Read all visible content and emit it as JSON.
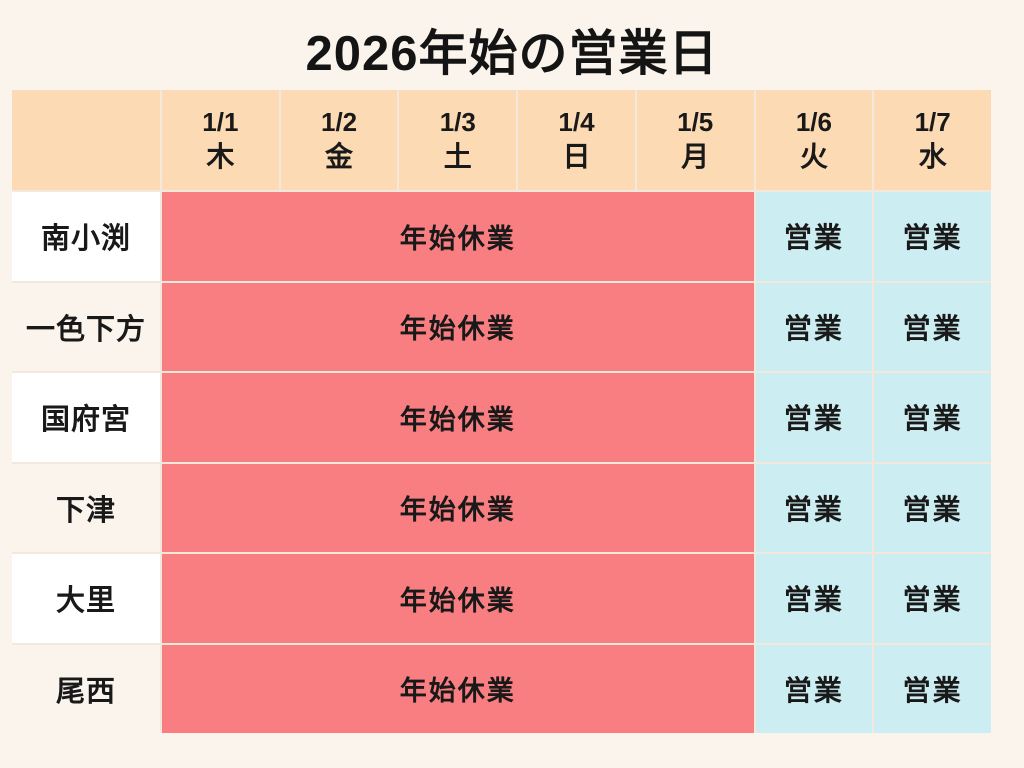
{
  "title": "2026年始の営業日",
  "table": {
    "corner_label": "",
    "columns": [
      {
        "date": "1/1",
        "day": "木"
      },
      {
        "date": "1/2",
        "day": "金"
      },
      {
        "date": "1/3",
        "day": "土"
      },
      {
        "date": "1/4",
        "day": "日"
      },
      {
        "date": "1/5",
        "day": "月"
      },
      {
        "date": "1/6",
        "day": "火"
      },
      {
        "date": "1/7",
        "day": "水"
      }
    ],
    "rows": [
      {
        "name": "南小渕",
        "closed_text": "年始休業",
        "open_1_6": "営業",
        "open_1_7": "営業"
      },
      {
        "name": "一色下方",
        "closed_text": "年始休業",
        "open_1_6": "営業",
        "open_1_7": "営業"
      },
      {
        "name": "国府宮",
        "closed_text": "年始休業",
        "open_1_6": "営業",
        "open_1_7": "営業"
      },
      {
        "name": "下津",
        "closed_text": "年始休業",
        "open_1_6": "営業",
        "open_1_7": "営業"
      },
      {
        "name": "大里",
        "closed_text": "年始休業",
        "open_1_6": "営業",
        "open_1_7": "営業"
      },
      {
        "name": "尾西",
        "closed_text": "年始休業",
        "open_1_6": "営業",
        "open_1_7": "営業"
      }
    ]
  },
  "colors": {
    "page_bg": "#faf4ec",
    "header_bg": "#fbdab4",
    "closed_bg": "#f87e81",
    "open_bg": "#cceef2",
    "label_bg": "#ffffff",
    "label_alt_bg": "#faf4ec",
    "grid_line": "#f2e8dc",
    "text": "#191919"
  },
  "chart_data": {
    "type": "table",
    "title": "2026年始の営業日",
    "column_headers": [
      "",
      "1/1 木",
      "1/2 金",
      "1/3 土",
      "1/4 日",
      "1/5 月",
      "1/6 火",
      "1/7 水"
    ],
    "rows": [
      [
        "南小渕",
        "年始休業",
        "年始休業",
        "年始休業",
        "年始休業",
        "年始休業",
        "営業",
        "営業"
      ],
      [
        "一色下方",
        "年始休業",
        "年始休業",
        "年始休業",
        "年始休業",
        "年始休業",
        "営業",
        "営業"
      ],
      [
        "国府宮",
        "年始休業",
        "年始休業",
        "年始休業",
        "年始休業",
        "年始休業",
        "営業",
        "営業"
      ],
      [
        "下津",
        "年始休業",
        "年始休業",
        "年始休業",
        "年始休業",
        "年始休業",
        "営業",
        "営業"
      ],
      [
        "大里",
        "年始休業",
        "年始休業",
        "年始休業",
        "年始休業",
        "年始休業",
        "営業",
        "営業"
      ],
      [
        "尾西",
        "年始休業",
        "年始休業",
        "年始休業",
        "年始休業",
        "年始休業",
        "営業",
        "営業"
      ]
    ],
    "merged_cells": "In each row, columns 1/1 through 1/5 are merged into a single red cell reading 年始休業; 1/6 and 1/7 are separate light-blue cells reading 営業.",
    "legend": {
      "closed": "年始休業 = New Year holiday closure (red)",
      "open": "営業 = open for business (light blue)"
    }
  }
}
